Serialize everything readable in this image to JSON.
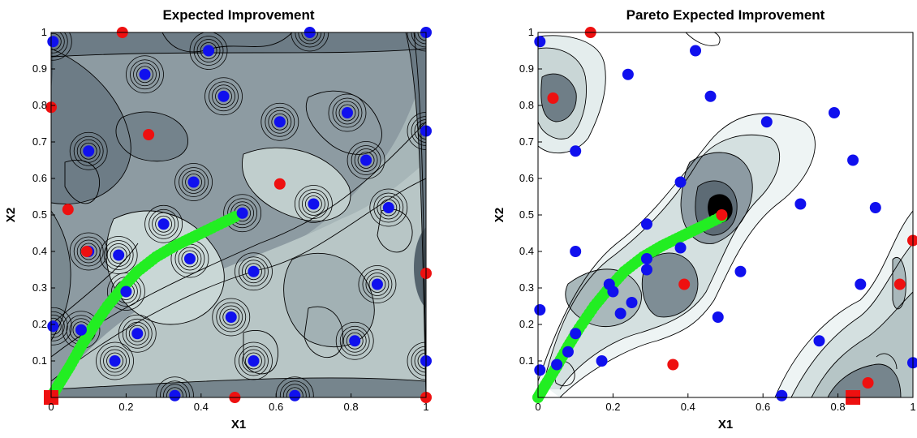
{
  "chart_data": [
    {
      "type": "scatter",
      "title": "Expected Improvement",
      "xlabel": "X1",
      "ylabel": "X2",
      "xlim": [
        0,
        1
      ],
      "ylim": [
        0,
        1
      ],
      "xticks": [
        "0",
        "0.2",
        "0.4",
        "0.6",
        "0.8",
        "1"
      ],
      "yticks": [
        "0.1",
        "0.2",
        "0.3",
        "0.4",
        "0.5",
        "0.6",
        "0.7",
        "0.8",
        "0.9",
        "1"
      ],
      "background": "filled contour",
      "colors": {
        "blue": "#1010ee",
        "red": "#ee1010",
        "green": "#22ee22",
        "contour_light": "#d6e2e2",
        "contour_dark": "#65737d"
      },
      "series": [
        {
          "color": "blue",
          "points": [
            [
              0.005,
              0.975
            ],
            [
              0.42,
              0.95
            ],
            [
              0.25,
              0.885
            ],
            [
              0.69,
              1.0
            ],
            [
              1.0,
              1.0
            ],
            [
              0.46,
              0.825
            ],
            [
              0.1,
              0.675
            ],
            [
              0.61,
              0.755
            ],
            [
              0.79,
              0.78
            ],
            [
              0.84,
              0.65
            ],
            [
              1.0,
              0.73
            ],
            [
              0.38,
              0.59
            ],
            [
              0.51,
              0.505
            ],
            [
              0.7,
              0.53
            ],
            [
              0.9,
              0.52
            ],
            [
              0.3,
              0.475
            ],
            [
              0.18,
              0.39
            ],
            [
              0.37,
              0.38
            ],
            [
              0.54,
              0.345
            ],
            [
              0.2,
              0.29
            ],
            [
              0.87,
              0.31
            ],
            [
              0.48,
              0.22
            ],
            [
              0.23,
              0.175
            ],
            [
              0.81,
              0.155
            ],
            [
              0.17,
              0.1
            ],
            [
              0.54,
              0.1
            ],
            [
              1.0,
              0.1
            ],
            [
              0.33,
              0.005
            ],
            [
              0.65,
              0.005
            ],
            [
              0.005,
              0.195
            ],
            [
              0.08,
              0.185
            ],
            [
              0.1,
              0.4
            ]
          ]
        },
        {
          "color": "red",
          "points": [
            [
              0.19,
              1.0
            ],
            [
              0.0,
              0.795
            ],
            [
              0.26,
              0.72
            ],
            [
              0.61,
              0.585
            ],
            [
              0.045,
              0.515
            ],
            [
              0.095,
              0.4
            ],
            [
              1.0,
              0.34
            ],
            [
              0.49,
              0.0
            ],
            [
              1.0,
              0.0
            ]
          ]
        },
        {
          "color": "red",
          "marker": "square",
          "points": [
            [
              0.0,
              0.0
            ]
          ]
        },
        {
          "color": "green",
          "marker": "curve",
          "points": [
            [
              0.0,
              0.0
            ],
            [
              0.02,
              0.035
            ],
            [
              0.05,
              0.085
            ],
            [
              0.08,
              0.14
            ],
            [
              0.11,
              0.19
            ],
            [
              0.15,
              0.25
            ],
            [
              0.19,
              0.3
            ],
            [
              0.23,
              0.345
            ],
            [
              0.28,
              0.385
            ],
            [
              0.33,
              0.415
            ],
            [
              0.38,
              0.44
            ],
            [
              0.43,
              0.465
            ],
            [
              0.49,
              0.495
            ]
          ]
        }
      ]
    },
    {
      "type": "scatter",
      "title": "Pareto Expected Improvement",
      "xlabel": "X1",
      "ylabel": "X2",
      "xlim": [
        0,
        1
      ],
      "ylim": [
        0,
        1
      ],
      "xticks": [
        "0",
        "0.2",
        "0.4",
        "0.6",
        "0.8",
        "1"
      ],
      "yticks": [
        "0.1",
        "0.2",
        "0.3",
        "0.4",
        "0.5",
        "0.6",
        "0.7",
        "0.8",
        "0.9",
        "1"
      ],
      "background": "filled contour",
      "colors": {
        "blue": "#1010ee",
        "red": "#ee1010",
        "green": "#22ee22",
        "contour_light": "#e8f0f0",
        "contour_dark": "#000000"
      },
      "series": [
        {
          "color": "blue",
          "points": [
            [
              0.005,
              0.975
            ],
            [
              0.42,
              0.95
            ],
            [
              0.24,
              0.885
            ],
            [
              0.46,
              0.825
            ],
            [
              0.1,
              0.675
            ],
            [
              0.61,
              0.755
            ],
            [
              0.79,
              0.78
            ],
            [
              0.84,
              0.65
            ],
            [
              0.38,
              0.59
            ],
            [
              0.7,
              0.53
            ],
            [
              0.9,
              0.52
            ],
            [
              0.29,
              0.475
            ],
            [
              0.1,
              0.4
            ],
            [
              0.29,
              0.38
            ],
            [
              0.38,
              0.41
            ],
            [
              0.29,
              0.35
            ],
            [
              0.54,
              0.345
            ],
            [
              0.19,
              0.31
            ],
            [
              0.2,
              0.29
            ],
            [
              0.86,
              0.31
            ],
            [
              0.25,
              0.26
            ],
            [
              0.48,
              0.22
            ],
            [
              0.22,
              0.23
            ],
            [
              0.005,
              0.24
            ],
            [
              0.1,
              0.175
            ],
            [
              0.75,
              0.155
            ],
            [
              0.08,
              0.125
            ],
            [
              0.17,
              0.1
            ],
            [
              0.05,
              0.09
            ],
            [
              1.0,
              0.095
            ],
            [
              0.005,
              0.075
            ],
            [
              0.65,
              0.005
            ]
          ]
        },
        {
          "color": "red",
          "points": [
            [
              0.14,
              1.0
            ],
            [
              0.04,
              0.82
            ],
            [
              0.49,
              0.5
            ],
            [
              0.39,
              0.31
            ],
            [
              0.965,
              0.31
            ],
            [
              1.0,
              0.43
            ],
            [
              0.36,
              0.09
            ],
            [
              0.88,
              0.04
            ]
          ]
        },
        {
          "color": "red",
          "marker": "square",
          "points": [
            [
              0.84,
              0.0
            ]
          ]
        },
        {
          "color": "green",
          "marker": "curve",
          "points": [
            [
              0.0,
              0.0
            ],
            [
              0.02,
              0.035
            ],
            [
              0.05,
              0.085
            ],
            [
              0.08,
              0.14
            ],
            [
              0.11,
              0.19
            ],
            [
              0.15,
              0.25
            ],
            [
              0.19,
              0.3
            ],
            [
              0.23,
              0.345
            ],
            [
              0.28,
              0.385
            ],
            [
              0.33,
              0.415
            ],
            [
              0.38,
              0.44
            ],
            [
              0.43,
              0.465
            ],
            [
              0.49,
              0.495
            ]
          ]
        }
      ]
    }
  ]
}
